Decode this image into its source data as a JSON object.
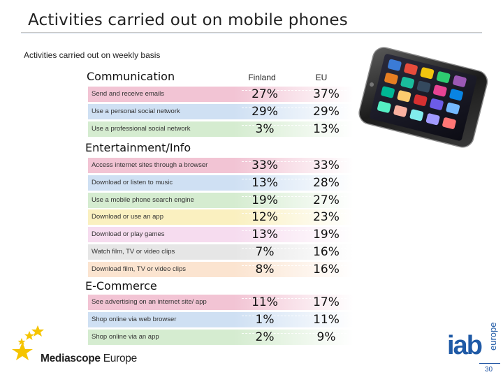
{
  "title": "Activities carried out on mobile phones",
  "subtitle": "Activities carried out on weekly basis",
  "columns": {
    "finland": "Finland",
    "eu": "EU"
  },
  "sections": {
    "communication": {
      "heading": "Communication",
      "rows": [
        {
          "label": "Send and receive emails",
          "finland": "27%",
          "eu": "37%",
          "color": "#f2c4d4"
        },
        {
          "label": "Use a personal social network",
          "finland": "29%",
          "eu": "29%",
          "color": "#cfe0f3"
        },
        {
          "label": "Use a professional social network",
          "finland": "3%",
          "eu": "13%",
          "color": "#d5ecd0"
        }
      ]
    },
    "entertainment": {
      "heading": "Entertainment/Info",
      "rows": [
        {
          "label": "Access internet sites through a browser",
          "finland": "33%",
          "eu": "33%",
          "color": "#f2c4d4"
        },
        {
          "label": "Download or listen to music",
          "finland": "13%",
          "eu": "28%",
          "color": "#cfe0f3"
        },
        {
          "label": "Use a mobile phone search engine",
          "finland": "19%",
          "eu": "27%",
          "color": "#d5ecd0"
        },
        {
          "label": "Download or use an app",
          "finland": "12%",
          "eu": "23%",
          "color": "#faf0c0"
        },
        {
          "label": "Download or play games",
          "finland": "13%",
          "eu": "19%",
          "color": "#f6dcef"
        },
        {
          "label": "Watch film, TV or video clips",
          "finland": "7%",
          "eu": "16%",
          "color": "#e6e6e6"
        },
        {
          "label": "Download film, TV or video clips",
          "finland": "8%",
          "eu": "16%",
          "color": "#fbe4d0"
        }
      ]
    },
    "ecommerce": {
      "heading": "E-Commerce",
      "rows": [
        {
          "label": "See advertising on an internet site/ app",
          "finland": "11%",
          "eu": "17%",
          "color": "#f2c4d4"
        },
        {
          "label": "Shop online via web browser",
          "finland": "1%",
          "eu": "11%",
          "color": "#cfe0f3"
        },
        {
          "label": "Shop online via an app",
          "finland": "2%",
          "eu": "9%",
          "color": "#d5ecd0"
        }
      ]
    }
  },
  "logo": {
    "brand": "Mediascope",
    "suffix": "Europe",
    "star_color": "#f5c400"
  },
  "iab": {
    "main": "iab",
    "side": "europe",
    "color": "#1f5aa6"
  },
  "page_number": "30"
}
